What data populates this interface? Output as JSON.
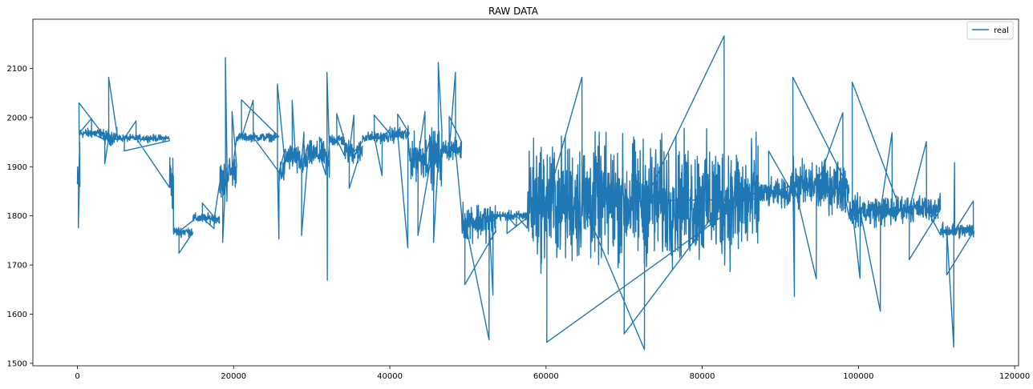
{
  "chart_data": {
    "type": "line",
    "title": "RAW DATA",
    "xlabel": "",
    "ylabel": "",
    "xlim": [
      -5700,
      120500
    ],
    "ylim": [
      1495,
      2200
    ],
    "x_ticks": [
      0,
      20000,
      40000,
      60000,
      80000,
      100000,
      120000
    ],
    "y_ticks": [
      1500,
      1600,
      1700,
      1800,
      1900,
      2000,
      2100
    ],
    "x_tick_labels": [
      "0",
      "20000",
      "40000",
      "60000",
      "80000",
      "100000",
      "120000"
    ],
    "y_tick_labels": [
      "1500",
      "1600",
      "1700",
      "1800",
      "1900",
      "2000",
      "2100"
    ],
    "grid": false,
    "legend_position": "top-right",
    "series": [
      {
        "name": "real",
        "color": "#1f77b4",
        "x_range": [
          0,
          114800
        ],
        "segments": [
          {
            "x0": 0,
            "x1": 250,
            "center": 1860,
            "spread": 70,
            "spikes": [
              {
                "x": 120,
                "y": 1776
              },
              {
                "x": 300,
                "y": 1950
              }
            ]
          },
          {
            "x0": 250,
            "x1": 3300,
            "center": 1968,
            "spread": 14,
            "spikes": [
              {
                "x": 200,
                "y": 2030
              },
              {
                "x": 1800,
                "y": 1998
              }
            ]
          },
          {
            "x0": 3300,
            "x1": 5200,
            "center": 1960,
            "spread": 22,
            "spikes": [
              {
                "x": 4000,
                "y": 2082
              },
              {
                "x": 3500,
                "y": 1906
              }
            ]
          },
          {
            "x0": 5200,
            "x1": 11800,
            "center": 1958,
            "spread": 10,
            "spikes": [
              {
                "x": 6000,
                "y": 1932
              },
              {
                "x": 7500,
                "y": 1993
              }
            ]
          },
          {
            "x0": 11800,
            "x1": 12300,
            "center": 1870,
            "spread": 90
          },
          {
            "x0": 12300,
            "x1": 14800,
            "center": 1768,
            "spread": 14,
            "spikes": [
              {
                "x": 13000,
                "y": 1724
              }
            ]
          },
          {
            "x0": 14800,
            "x1": 18200,
            "center": 1795,
            "spread": 14,
            "spikes": [
              {
                "x": 16000,
                "y": 1826
              },
              {
                "x": 17500,
                "y": 1774
              }
            ]
          },
          {
            "x0": 18200,
            "x1": 19200,
            "center": 1870,
            "spread": 60,
            "spikes": [
              {
                "x": 18950,
                "y": 2122
              },
              {
                "x": 18600,
                "y": 1746
              }
            ]
          },
          {
            "x0": 19200,
            "x1": 20400,
            "center": 1890,
            "spread": 45,
            "spikes": [
              {
                "x": 19800,
                "y": 2012
              }
            ]
          },
          {
            "x0": 20400,
            "x1": 25800,
            "center": 1960,
            "spread": 12,
            "spikes": [
              {
                "x": 21000,
                "y": 2036
              },
              {
                "x": 22500,
                "y": 2035
              }
            ]
          },
          {
            "x0": 25800,
            "x1": 26600,
            "center": 1890,
            "spread": 35,
            "spikes": [
              {
                "x": 25600,
                "y": 2068
              },
              {
                "x": 25800,
                "y": 1753
              }
            ]
          },
          {
            "x0": 26600,
            "x1": 28000,
            "center": 1920,
            "spread": 40,
            "spikes": [
              {
                "x": 27500,
                "y": 2035
              }
            ]
          },
          {
            "x0": 28000,
            "x1": 29500,
            "center": 1910,
            "spread": 45,
            "spikes": [
              {
                "x": 28700,
                "y": 1760
              },
              {
                "x": 29000,
                "y": 1970
              }
            ]
          },
          {
            "x0": 29500,
            "x1": 31800,
            "center": 1925,
            "spread": 38,
            "spikes": [
              {
                "x": 31000,
                "y": 1960
              }
            ]
          },
          {
            "x0": 31800,
            "x1": 32300,
            "center": 1900,
            "spread": 40,
            "spikes": [
              {
                "x": 31950,
                "y": 2092
              },
              {
                "x": 32000,
                "y": 1669
              }
            ]
          },
          {
            "x0": 32300,
            "x1": 34200,
            "center": 1955,
            "spread": 20,
            "spikes": [
              {
                "x": 33200,
                "y": 2008
              }
            ]
          },
          {
            "x0": 34200,
            "x1": 36500,
            "center": 1930,
            "spread": 35,
            "spikes": [
              {
                "x": 34800,
                "y": 1856
              },
              {
                "x": 35400,
                "y": 2005
              }
            ]
          },
          {
            "x0": 36500,
            "x1": 40000,
            "center": 1960,
            "spread": 16,
            "spikes": [
              {
                "x": 38000,
                "y": 2005
              },
              {
                "x": 39000,
                "y": 1882
              }
            ]
          },
          {
            "x0": 40000,
            "x1": 42500,
            "center": 1965,
            "spread": 22,
            "spikes": [
              {
                "x": 41000,
                "y": 2007
              },
              {
                "x": 42300,
                "y": 1735
              }
            ]
          },
          {
            "x0": 42500,
            "x1": 45200,
            "center": 1920,
            "spread": 65,
            "spikes": [
              {
                "x": 43600,
                "y": 1760
              },
              {
                "x": 44500,
                "y": 2012
              }
            ]
          },
          {
            "x0": 45200,
            "x1": 46700,
            "center": 1920,
            "spread": 80,
            "spikes": [
              {
                "x": 46200,
                "y": 2112
              },
              {
                "x": 45600,
                "y": 1746
              }
            ]
          },
          {
            "x0": 46700,
            "x1": 49200,
            "center": 1935,
            "spread": 30,
            "spikes": [
              {
                "x": 47600,
                "y": 2002
              },
              {
                "x": 48400,
                "y": 2092
              }
            ]
          },
          {
            "x0": 49200,
            "x1": 53600,
            "center": 1790,
            "spread": 55,
            "spikes": [
              {
                "x": 49600,
                "y": 1660
              },
              {
                "x": 52700,
                "y": 1548
              },
              {
                "x": 53200,
                "y": 1639
              }
            ]
          },
          {
            "x0": 53600,
            "x1": 57600,
            "center": 1800,
            "spread": 14,
            "spikes": [
              {
                "x": 55000,
                "y": 1764
              },
              {
                "x": 56200,
                "y": 1778
              }
            ]
          },
          {
            "x0": 57600,
            "x1": 87300,
            "center": 1830,
            "spread": 175,
            "spikes": [
              {
                "x": 60100,
                "y": 1543
              },
              {
                "x": 64600,
                "y": 2082
              },
              {
                "x": 72600,
                "y": 1528
              },
              {
                "x": 82800,
                "y": 2166
              },
              {
                "x": 70000,
                "y": 1560
              }
            ]
          },
          {
            "x0": 87300,
            "x1": 91200,
            "center": 1845,
            "spread": 40,
            "spikes": [
              {
                "x": 88500,
                "y": 1932
              }
            ]
          },
          {
            "x0": 91200,
            "x1": 98800,
            "center": 1860,
            "spread": 75,
            "spikes": [
              {
                "x": 91600,
                "y": 2082
              },
              {
                "x": 91800,
                "y": 1636
              },
              {
                "x": 94600,
                "y": 1672
              },
              {
                "x": 98000,
                "y": 2010
              }
            ]
          },
          {
            "x0": 98800,
            "x1": 105000,
            "center": 1810,
            "spread": 45,
            "spikes": [
              {
                "x": 99200,
                "y": 2072
              },
              {
                "x": 100200,
                "y": 1673
              },
              {
                "x": 102800,
                "y": 1606
              },
              {
                "x": 104300,
                "y": 1969
              }
            ]
          },
          {
            "x0": 105000,
            "x1": 110500,
            "center": 1815,
            "spread": 38,
            "spikes": [
              {
                "x": 106500,
                "y": 1711
              },
              {
                "x": 108700,
                "y": 1951
              }
            ]
          },
          {
            "x0": 110500,
            "x1": 114800,
            "center": 1770,
            "spread": 22,
            "spikes": [
              {
                "x": 111300,
                "y": 1680
              },
              {
                "x": 112200,
                "y": 1533
              },
              {
                "x": 112300,
                "y": 1908
              },
              {
                "x": 114700,
                "y": 1830
              }
            ]
          }
        ]
      }
    ]
  }
}
